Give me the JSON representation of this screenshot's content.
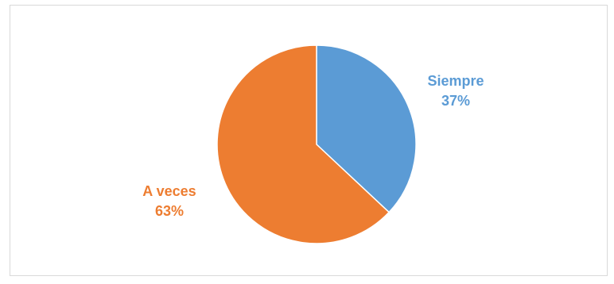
{
  "chart_data": {
    "type": "pie",
    "title": "",
    "slices": [
      {
        "label": "Siempre",
        "value": 37,
        "percent_label": "37%",
        "color": "#5B9BD5"
      },
      {
        "label": "A veces",
        "value": 63,
        "percent_label": "63%",
        "color": "#ED7D31"
      }
    ],
    "start": "12 o'clock",
    "direction": "clockwise",
    "legend": "none",
    "data_labels": "outside"
  }
}
